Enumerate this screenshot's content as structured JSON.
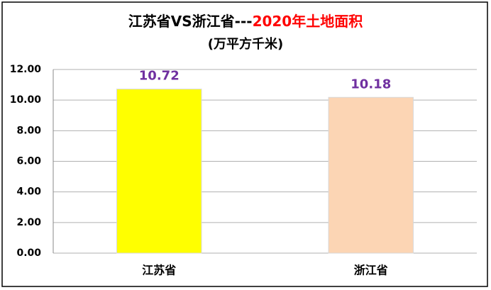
{
  "chart_data": {
    "type": "bar",
    "title": [
      "江苏省VS浙江省---",
      "2020年土地面积"
    ],
    "title_colors": [
      "#000000",
      "#ff0000"
    ],
    "subtitle": "(万平方千米)",
    "categories": [
      "江苏省",
      "浙江省"
    ],
    "values": [
      10.72,
      10.18
    ],
    "colors": [
      "#ffff00",
      "#fcd5b4"
    ],
    "value_label_color": "#7030a0",
    "ylim": [
      0,
      12
    ],
    "yticks": [
      {
        "value": 0,
        "label": "0.00"
      },
      {
        "value": 2,
        "label": "2.00"
      },
      {
        "value": 4,
        "label": "4.00"
      },
      {
        "value": 6,
        "label": "6.00"
      },
      {
        "value": 8,
        "label": "8.00"
      },
      {
        "value": 10,
        "label": "10.00"
      },
      {
        "value": 12,
        "label": "12.00"
      }
    ],
    "grid": true
  }
}
